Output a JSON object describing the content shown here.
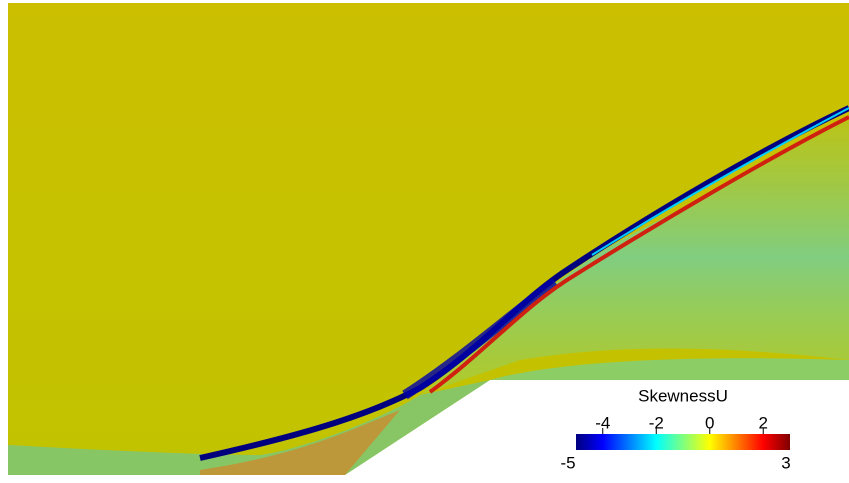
{
  "chart_data": {
    "type": "field",
    "title": "SkewnessU",
    "clim": [
      -5,
      3
    ],
    "cticks": [
      -4,
      -2,
      0,
      2
    ],
    "colormap": [
      "#00007f",
      "#0000ff",
      "#007fff",
      "#00ffff",
      "#7fff7f",
      "#ffff00",
      "#ff7f00",
      "#ff0000",
      "#7f0000"
    ]
  }
}
